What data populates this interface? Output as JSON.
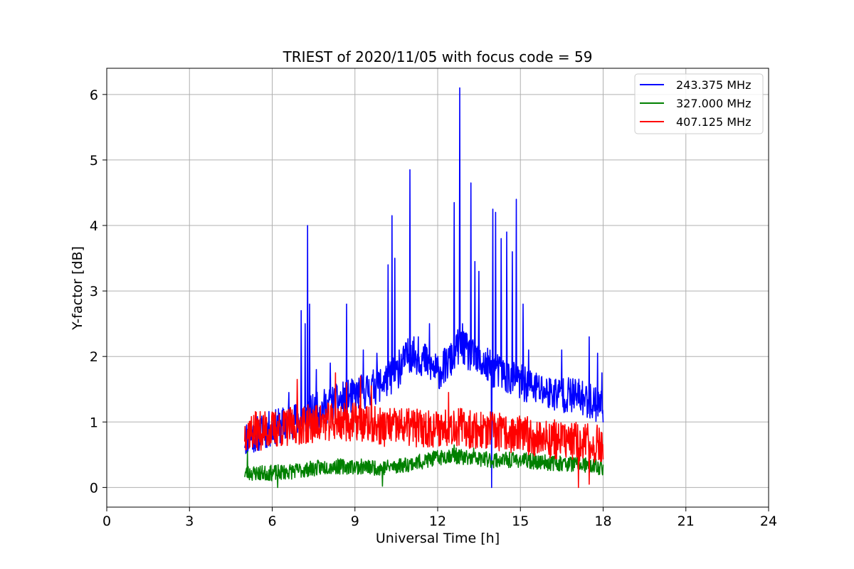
{
  "chart_data": {
    "type": "line",
    "title": "TRIEST of 2020/11/05 with focus code = 59",
    "xlabel": "Universal Time [h]",
    "ylabel": "Y-factor [dB]",
    "xlim": [
      0,
      24
    ],
    "ylim": [
      -0.3,
      6.4
    ],
    "xticks": [
      0,
      3,
      6,
      9,
      12,
      15,
      18,
      21,
      24
    ],
    "yticks": [
      0,
      1,
      2,
      3,
      4,
      5,
      6
    ],
    "grid": true,
    "legend_position": "top-right",
    "series": [
      {
        "name": "243.375 MHz",
        "color": "#0000ff",
        "baseline": [
          [
            5.0,
            0.75
          ],
          [
            6.0,
            0.9
          ],
          [
            7.0,
            1.05
          ],
          [
            8.0,
            1.25
          ],
          [
            9.0,
            1.4
          ],
          [
            10.0,
            1.6
          ],
          [
            10.5,
            1.75
          ],
          [
            11.0,
            2.05
          ],
          [
            11.5,
            1.95
          ],
          [
            12.0,
            1.75
          ],
          [
            12.5,
            1.95
          ],
          [
            12.8,
            2.2
          ],
          [
            13.2,
            2.0
          ],
          [
            14.0,
            1.8
          ],
          [
            15.0,
            1.6
          ],
          [
            16.0,
            1.45
          ],
          [
            17.0,
            1.4
          ],
          [
            18.0,
            1.25
          ]
        ],
        "noise": 0.28,
        "spikes": [
          [
            6.6,
            1.45
          ],
          [
            7.05,
            2.7
          ],
          [
            7.2,
            2.5
          ],
          [
            7.28,
            4.0
          ],
          [
            7.35,
            2.8
          ],
          [
            7.6,
            1.8
          ],
          [
            8.1,
            1.9
          ],
          [
            8.7,
            2.8
          ],
          [
            9.3,
            2.1
          ],
          [
            9.8,
            2.05
          ],
          [
            10.2,
            3.4
          ],
          [
            10.35,
            4.15
          ],
          [
            10.45,
            3.5
          ],
          [
            10.6,
            2.1
          ],
          [
            11.0,
            4.85
          ],
          [
            11.3,
            2.3
          ],
          [
            11.7,
            2.5
          ],
          [
            12.6,
            4.35
          ],
          [
            12.8,
            6.1
          ],
          [
            12.9,
            2.5
          ],
          [
            13.2,
            4.65
          ],
          [
            13.35,
            3.45
          ],
          [
            13.5,
            3.3
          ],
          [
            14.0,
            4.25
          ],
          [
            14.1,
            4.2
          ],
          [
            14.3,
            3.8
          ],
          [
            14.5,
            3.9
          ],
          [
            14.7,
            3.6
          ],
          [
            14.85,
            4.4
          ],
          [
            15.1,
            2.8
          ],
          [
            15.3,
            2.1
          ],
          [
            16.5,
            2.1
          ],
          [
            17.5,
            2.3
          ],
          [
            17.8,
            2.05
          ],
          [
            17.95,
            1.75
          ]
        ],
        "dips": [
          [
            13.95,
            0.0
          ]
        ],
        "seed": 11
      },
      {
        "name": "327.000 MHz",
        "color": "#008000",
        "baseline": [
          [
            5.0,
            0.22
          ],
          [
            6.0,
            0.22
          ],
          [
            7.0,
            0.26
          ],
          [
            8.0,
            0.32
          ],
          [
            9.0,
            0.32
          ],
          [
            10.0,
            0.3
          ],
          [
            11.0,
            0.36
          ],
          [
            12.0,
            0.45
          ],
          [
            12.5,
            0.5
          ],
          [
            13.0,
            0.45
          ],
          [
            14.0,
            0.42
          ],
          [
            15.0,
            0.42
          ],
          [
            16.0,
            0.38
          ],
          [
            17.0,
            0.36
          ],
          [
            18.0,
            0.3
          ]
        ],
        "noise": 0.12,
        "spikes": [
          [
            5.1,
            0.55
          ],
          [
            12.6,
            0.65
          ],
          [
            13.3,
            0.6
          ]
        ],
        "dips": [
          [
            6.2,
            0.0
          ],
          [
            10.0,
            0.02
          ]
        ],
        "seed": 23
      },
      {
        "name": "407.125 MHz",
        "color": "#ff0000",
        "baseline": [
          [
            5.0,
            0.85
          ],
          [
            6.0,
            0.88
          ],
          [
            7.0,
            0.95
          ],
          [
            8.0,
            1.0
          ],
          [
            9.0,
            1.0
          ],
          [
            10.0,
            0.92
          ],
          [
            11.0,
            0.92
          ],
          [
            12.0,
            0.9
          ],
          [
            12.5,
            0.95
          ],
          [
            13.0,
            0.9
          ],
          [
            14.0,
            0.85
          ],
          [
            15.0,
            0.8
          ],
          [
            16.0,
            0.75
          ],
          [
            17.0,
            0.7
          ],
          [
            18.0,
            0.65
          ]
        ],
        "noise": 0.3,
        "spikes": [
          [
            6.9,
            1.65
          ],
          [
            8.3,
            1.75
          ],
          [
            8.7,
            1.6
          ],
          [
            9.2,
            1.7
          ],
          [
            9.6,
            1.55
          ],
          [
            12.4,
            1.45
          ]
        ],
        "dips": [
          [
            17.1,
            0.0
          ],
          [
            17.5,
            0.05
          ]
        ],
        "seed": 37
      }
    ]
  }
}
